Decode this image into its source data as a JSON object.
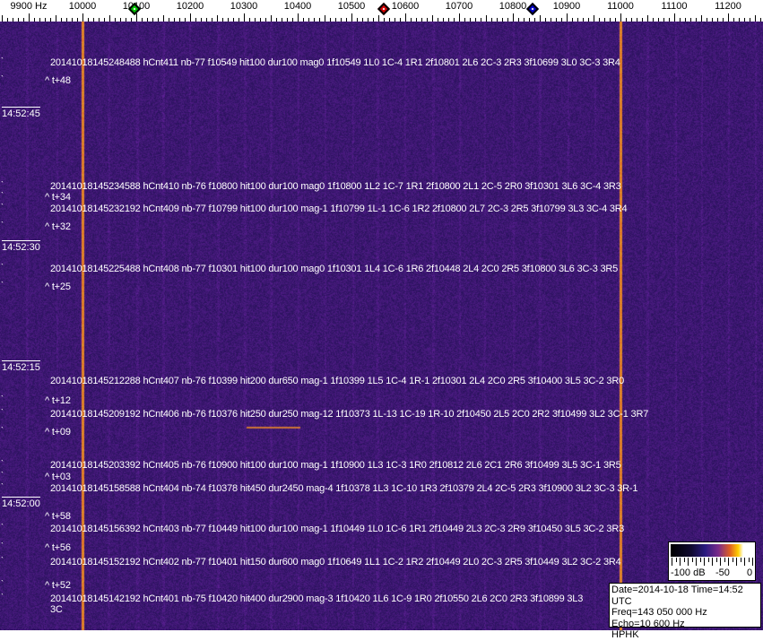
{
  "axis": {
    "ticks": [
      {
        "hz": 9900,
        "label": "9900 Hz"
      },
      {
        "hz": 10000,
        "label": "10000"
      },
      {
        "hz": 10100,
        "label": "10100"
      },
      {
        "hz": 10200,
        "label": "10200"
      },
      {
        "hz": 10300,
        "label": "10300"
      },
      {
        "hz": 10400,
        "label": "10400"
      },
      {
        "hz": 10500,
        "label": "10500"
      },
      {
        "hz": 10600,
        "label": "10600"
      },
      {
        "hz": 10700,
        "label": "10700"
      },
      {
        "hz": 10800,
        "label": "10800"
      },
      {
        "hz": 10900,
        "label": "10900"
      },
      {
        "hz": 11000,
        "label": "11000"
      },
      {
        "hz": 11100,
        "label": "11100"
      },
      {
        "hz": 11200,
        "label": "11200"
      }
    ],
    "markers": [
      {
        "hz": 10097,
        "color": "#00c000"
      },
      {
        "hz": 10560,
        "color": "#d00000"
      },
      {
        "hz": 10837,
        "color": "#0000c0"
      }
    ]
  },
  "waterfall": {
    "colors": {
      "background": "#2a1a78",
      "line": "#e07020"
    },
    "strong_lines_hz": [
      10000,
      11000
    ]
  },
  "detections": [
    "20141018145248488 hCnt411 nb-77 f10549 hit100 dur100 mag0 1f10549 1L0 1C-4 1R1 2f10801 2L6 2C-3 2R3 3f10699 3L0 3C-3 3R4",
    "20141018145234588 hCnt410 nb-76 f10800 hit100 dur100 mag0 1f10800 1L2 1C-7 1R1 2f10800 2L1 2C-5 2R0 3f10301 3L6 3C-4 3R3",
    "20141018145232192 hCnt409 nb-77 f10799 hit100 dur100 mag-1 1f10799 1L-1 1C-6 1R2 2f10800 2L7 2C-3 2R5 3f10799 3L3 3C-4 3R4",
    "20141018145225488 hCnt408 nb-77 f10301 hit100 dur100 mag0 1f10301 1L4 1C-6 1R6 2f10448 2L4 2C0 2R5 3f10800 3L6 3C-3 3R5",
    "20141018145212288 hCnt407 nb-76 f10399 hit200 dur650 mag-1 1f10399 1L5 1C-4 1R-1 2f10301 2L4 2C0 2R5 3f10400 3L5 3C-2 3R0",
    "20141018145209192 hCnt406 nb-76 f10376 hit250 dur250 mag-12 1f10373 1L-13 1C-19 1R-10 2f10450 2L5 2C0 2R2 3f10499 3L2 3C-1 3R7",
    "20141018145203392 hCnt405 nb-76 f10900 hit100 dur100 mag-1 1f10900 1L3 1C-3 1R0 2f10812 2L6 2C1 2R6 3f10499 3L5 3C-1 3R5",
    "20141018145158588 hCnt404 nb-74 f10378 hit450 dur2450 mag-4 1f10378 1L3 1C-10 1R3 2f10379 2L4 2C-5 2R3 3f10900 3L2 3C-3 3R-1",
    "20141018145156392 hCnt403 nb-77 f10449 hit100 dur100 mag-1 1f10449 1L0 1C-6 1R1 2f10449 2L3 2C-3 2R9 3f10450 3L5 3C-2 3R3",
    "20141018145152192 hCnt402 nb-77 f10401 hit150 dur600 mag0 1f10649 1L1 1C-2 1R2 2f10449 2L0 2C-3 2R5 3f10449 3L2 3C-2 3R4",
    "20141018145142192 hCnt401 nb-75 f10420 hit400 dur2900 mag-3 1f10420 1L6 1C-9 1R0 2f10550 2L6 2C0 2R3 3f10899 3L3 3C"
  ],
  "offsets": [
    "^ t+48",
    "^ t+34",
    "^ t+32",
    "^ t+25",
    "^ t+12",
    "^ t+09",
    "^ t+03",
    "^ t+58",
    "^ t+56",
    "^ t+52"
  ],
  "times": [
    "14:52:45",
    "14:52:30",
    "14:52:15",
    "14:52:00"
  ],
  "scale": {
    "labels": [
      "-100 dB",
      "-50",
      "0"
    ]
  },
  "info": {
    "line1": "Date=2014-10-18 Time=14:52 UTC",
    "line2": "Freq=143 050 000 Hz",
    "line3": "Echo=10 600 Hz",
    "line4": "HPHK"
  }
}
